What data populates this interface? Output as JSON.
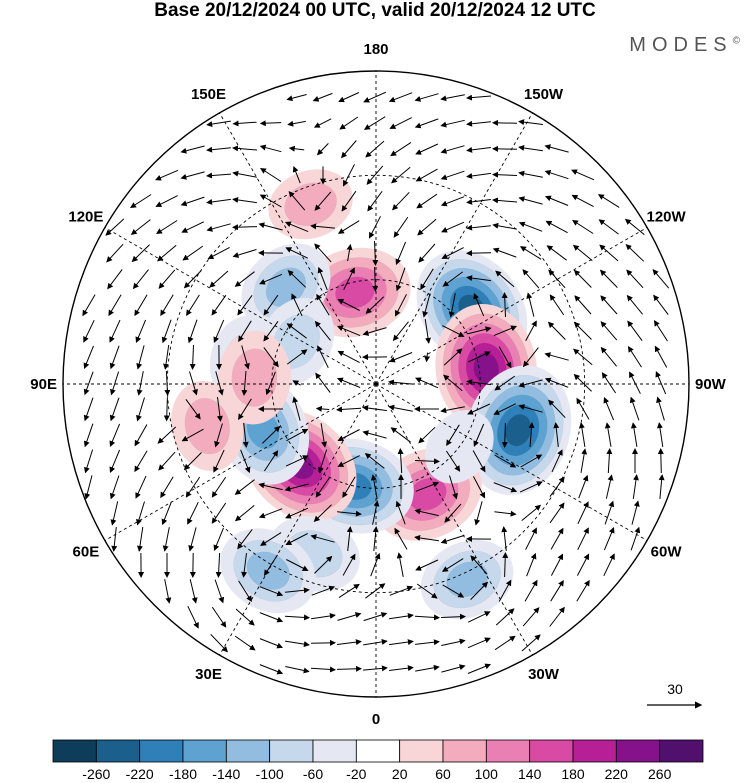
{
  "title": "Base 20/12/2024 00 UTC, valid 20/12/2024 12 UTC",
  "brand": "MODES",
  "brand_mark": "©",
  "chart_data": {
    "type": "heatmap",
    "projection": "north-polar-stereographic",
    "field": "filled anomaly contours with wind vectors",
    "longitude_labels": [
      "180",
      "150E",
      "120E",
      "90E",
      "60E",
      "30E",
      "0",
      "30W",
      "60W",
      "90W",
      "120W",
      "150W"
    ],
    "longitude_values": [
      180,
      150,
      120,
      90,
      60,
      30,
      0,
      -30,
      -60,
      -90,
      -120,
      -150
    ],
    "legend": {
      "placement": "bottom",
      "levels": [
        -260,
        -220,
        -180,
        -140,
        -100,
        -60,
        -20,
        20,
        60,
        100,
        140,
        180,
        220,
        260
      ],
      "tick_labels": [
        "-260",
        "-220",
        "-180",
        "-140",
        "-100",
        "-60",
        "-20",
        "20",
        "60",
        "100",
        "140",
        "180",
        "220",
        "260"
      ],
      "colors": [
        "#0e3d5c",
        "#1b5f8c",
        "#2f80b8",
        "#5ea2d1",
        "#92bde0",
        "#c5d8ec",
        "#e5e7f2",
        "#ffffff",
        "#f8d5d7",
        "#f3acbe",
        "#ea7fb4",
        "#d94aa5",
        "#b71f97",
        "#86128b",
        "#52106e"
      ]
    },
    "vector_reference": {
      "label": "30",
      "value": 30
    },
    "anomaly_centers": [
      {
        "lon": -128,
        "lat": 55,
        "value": -230
      },
      {
        "lon": -98,
        "lat": 58,
        "value": 240
      },
      {
        "lon": -72,
        "lat": 47,
        "value": -250
      },
      {
        "lon": -25,
        "lat": 55,
        "value": 170
      },
      {
        "lon": 12,
        "lat": 60,
        "value": -200
      },
      {
        "lon": 43,
        "lat": 58,
        "value": 220
      },
      {
        "lon": 68,
        "lat": 55,
        "value": -170
      },
      {
        "lon": 167,
        "lat": 63,
        "value": 170
      },
      {
        "lon": 137,
        "lat": 52,
        "value": -110
      },
      {
        "lon": 100,
        "lat": 52,
        "value": -80
      },
      {
        "lon": 118,
        "lat": 64,
        "value": -80
      },
      {
        "lon": -53,
        "lat": 60,
        "value": -30
      },
      {
        "lon": 20,
        "lat": 38,
        "value": -90
      },
      {
        "lon": -25,
        "lat": 28,
        "value": -100
      },
      {
        "lon": 93,
        "lat": 55,
        "value": 90
      },
      {
        "lon": 76,
        "lat": 40,
        "value": 80
      },
      {
        "lon": 30,
        "lat": 28,
        "value": -120
      },
      {
        "lon": 160,
        "lat": 35,
        "value": 60
      }
    ]
  }
}
